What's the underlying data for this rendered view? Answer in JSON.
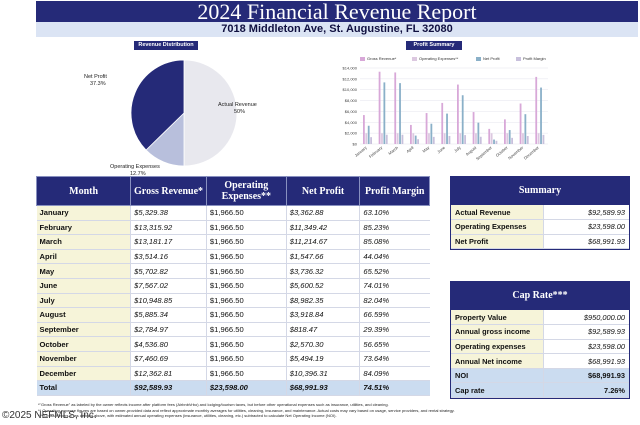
{
  "header": {
    "title": "2024 Financial Revenue Report",
    "address": "7018 Middleton Ave, St. Augustine, FL 32080"
  },
  "pie_chart": {
    "title": "Revenue Distribution",
    "labels": {
      "net_profit": "Net Profit",
      "net_profit_pct": "37.3%",
      "actual_revenue": "Actual Revenue",
      "actual_revenue_pct": "50%",
      "operating_expenses": "Operating Expenses",
      "operating_expenses_pct": "12.7%"
    },
    "colors": {
      "net_profit": "#252a78",
      "actual_revenue": "#e8e8ee",
      "operating_expenses": "#b8bfdc"
    }
  },
  "chart_data": {
    "type": "bar",
    "title": "Profit Summary",
    "categories": [
      "January",
      "February",
      "March",
      "April",
      "May",
      "June",
      "July",
      "August",
      "September",
      "October",
      "November",
      "December"
    ],
    "series": [
      {
        "name": "Gross Revenue*",
        "color": "#d8a8d8",
        "values": [
          5329.38,
          13315.92,
          13181.17,
          3514.16,
          5702.82,
          7567.02,
          10948.85,
          5885.34,
          2784.97,
          4536.8,
          7460.69,
          12362.81
        ]
      },
      {
        "name": "Operating Expenses**",
        "color": "#dcc8e0",
        "values": [
          1966.5,
          1966.5,
          1966.5,
          1966.5,
          1966.5,
          1966.5,
          1966.5,
          1966.5,
          1966.5,
          1966.5,
          1966.5,
          1966.5
        ]
      },
      {
        "name": "Net Profit",
        "color": "#8ab0c8",
        "values": [
          3362.88,
          11349.42,
          11214.67,
          1547.66,
          3736.32,
          5600.52,
          8982.35,
          3918.84,
          818.47,
          2570.3,
          5494.19,
          10396.31
        ]
      },
      {
        "name": "Profit Margin",
        "color": "#c8c0dc",
        "values": [
          0.631,
          0.8523,
          0.8508,
          0.4404,
          0.6552,
          0.7401,
          0.8204,
          0.6659,
          0.2939,
          0.5665,
          0.7364,
          0.8409
        ]
      }
    ],
    "yticks": [
      "$0",
      "$2,000",
      "$4,000",
      "$6,000",
      "$8,000",
      "$10,000",
      "$12,000",
      "$14,000"
    ],
    "ylim": [
      0,
      14000
    ],
    "grid": true,
    "legend": "top"
  },
  "main_table": {
    "headers": {
      "month": "Month",
      "gross": "Gross Revenue*",
      "opex": "Operating Expenses**",
      "net": "Net Profit",
      "margin": "Profit Margin"
    },
    "rows": [
      {
        "month": "January",
        "gross": "$5,329.38",
        "opex": "$1,966.50",
        "net": "$3,362.88",
        "margin": "63.10%"
      },
      {
        "month": "February",
        "gross": "$13,315.92",
        "opex": "$1,966.50",
        "net": "$11,349.42",
        "margin": "85.23%"
      },
      {
        "month": "March",
        "gross": "$13,181.17",
        "opex": "$1,966.50",
        "net": "$11,214.67",
        "margin": "85.08%"
      },
      {
        "month": "April",
        "gross": "$3,514.16",
        "opex": "$1,966.50",
        "net": "$1,547.66",
        "margin": "44.04%"
      },
      {
        "month": "May",
        "gross": "$5,702.82",
        "opex": "$1,966.50",
        "net": "$3,736.32",
        "margin": "65.52%"
      },
      {
        "month": "June",
        "gross": "$7,567.02",
        "opex": "$1,966.50",
        "net": "$5,600.52",
        "margin": "74.01%"
      },
      {
        "month": "July",
        "gross": "$10,948.85",
        "opex": "$1,966.50",
        "net": "$8,982.35",
        "margin": "82.04%"
      },
      {
        "month": "August",
        "gross": "$5,885.34",
        "opex": "$1,966.50",
        "net": "$3,918.84",
        "margin": "66.59%"
      },
      {
        "month": "September",
        "gross": "$2,784.97",
        "opex": "$1,966.50",
        "net": "$818.47",
        "margin": "29.39%"
      },
      {
        "month": "October",
        "gross": "$4,536.80",
        "opex": "$1,966.50",
        "net": "$2,570.30",
        "margin": "56.65%"
      },
      {
        "month": "November",
        "gross": "$7,460.69",
        "opex": "$1,966.50",
        "net": "$5,494.19",
        "margin": "73.64%"
      },
      {
        "month": "December",
        "gross": "$12,362.81",
        "opex": "$1,966.50",
        "net": "$10,396.31",
        "margin": "84.09%"
      }
    ],
    "total": {
      "month": "Total",
      "gross": "$92,589.93",
      "opex": "$23,598.00",
      "net": "$68,991.93",
      "margin": "74.51%"
    }
  },
  "summary": {
    "title": "Summary",
    "rows": [
      {
        "label": "Actual Revenue",
        "value": "$92,589.93"
      },
      {
        "label": "Operating Expenses",
        "value": "$23,598.00"
      },
      {
        "label": "Net Profit",
        "value": "$68,991.93"
      }
    ]
  },
  "cap_rate": {
    "title": "Cap Rate***",
    "rows": [
      {
        "label": "Property Value",
        "value": "$950,000.00"
      },
      {
        "label": "Annual gross income",
        "value": "$92,589.93"
      },
      {
        "label": "Operating expenses",
        "value": "$23,598.00"
      },
      {
        "label": "Annual Net income",
        "value": "$68,991.93"
      },
      {
        "label": "NOI",
        "value": "$68,991.93"
      },
      {
        "label": "Cap rate",
        "value": "7.26%"
      }
    ]
  },
  "footnotes": [
    "*\"Gross Revenue\" as labeled by the owner reflects income after platform fees (AirbnbVrbo) and lodging/tourism taxes, but before other operational expenses such as insurance, utilities, and cleaning.",
    "** Operating expense figures are based on owner-provided data and reflect approximate monthly averages for utilities, cleaning, insurance, and maintenance. Actual costs may vary based on usage, service providers, and rental strategy.",
    "***\"Gross Revenue\" as defined above, with estimated annual operating expenses (insurance, utilities, cleaning, etc.) subtracted to calculate Net Operating Income (NOI)."
  ],
  "watermark": "©2025 NEFMLS, Inc."
}
